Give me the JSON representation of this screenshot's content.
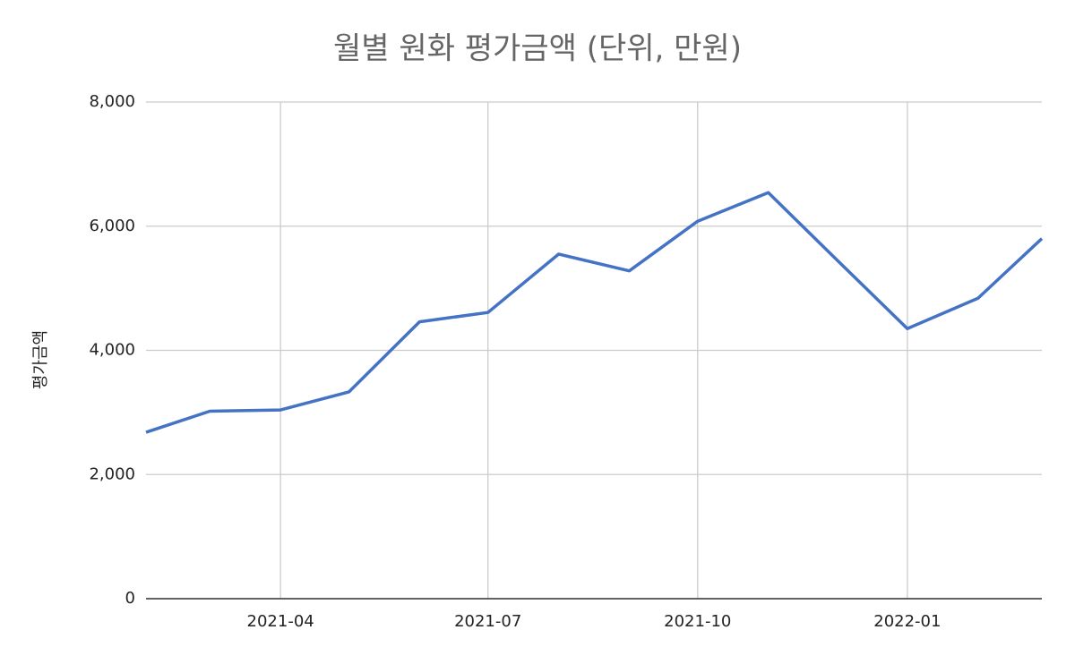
{
  "chart_data": {
    "type": "line",
    "title": "월별 원화 평가금액 (단위, 만원)",
    "y_label": "평가금액",
    "x": [
      "2021-02",
      "2021-03",
      "2021-04",
      "2021-05",
      "2021-06",
      "2021-07",
      "2021-08",
      "2021-09",
      "2021-10",
      "2021-11",
      "2021-12",
      "2022-01",
      "2022-02",
      "2022-03"
    ],
    "series": [
      {
        "name": "평가금액",
        "color": "#4472c4",
        "values": [
          2680,
          3020,
          3040,
          3330,
          4460,
          4610,
          5550,
          5280,
          6080,
          6540,
          5460,
          4350,
          4840,
          5800
        ]
      }
    ],
    "xlim": [
      "2021-02",
      "2022-03"
    ],
    "xticks": [
      "2021-04",
      "2021-07",
      "2021-10",
      "2022-01"
    ],
    "ylim": [
      0,
      8000
    ],
    "yticks": [
      0,
      {
        "value": 2000,
        "label": "2,000"
      },
      {
        "value": 4000,
        "label": "4,000"
      },
      {
        "value": 6000,
        "label": "6,000"
      },
      {
        "value": 8000,
        "label": "8,000"
      }
    ],
    "grid": true
  }
}
